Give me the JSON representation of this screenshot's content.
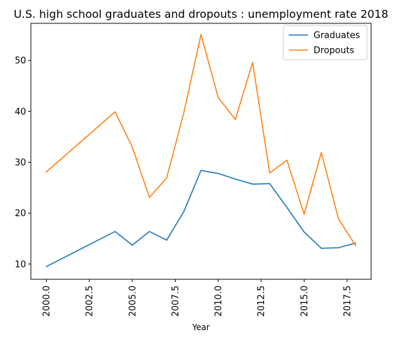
{
  "chart_data": {
    "type": "line",
    "title": "U.S. high school graduates and dropouts : unemployment rate 2018",
    "xlabel": "Year",
    "ylabel": "",
    "xlim": [
      1999.1,
      2018.9
    ],
    "ylim": [
      7,
      57.3
    ],
    "xticks": [
      2000.0,
      2002.5,
      2005.0,
      2007.5,
      2010.0,
      2012.5,
      2015.0,
      2017.5
    ],
    "xtick_labels": [
      "2000.0",
      "2002.5",
      "2005.0",
      "2007.5",
      "2010.0",
      "2012.5",
      "2015.0",
      "2017.5"
    ],
    "yticks": [
      10,
      20,
      30,
      40,
      50
    ],
    "ytick_labels": [
      "10",
      "20",
      "30",
      "40",
      "50"
    ],
    "grid": false,
    "legend_position": "top-right",
    "series": [
      {
        "name": "Graduates",
        "color": "#1f77b4",
        "x": [
          2000,
          2004,
          2005,
          2006,
          2007,
          2008,
          2009,
          2010,
          2011,
          2012,
          2013,
          2014,
          2015,
          2016,
          2017,
          2018
        ],
        "y": [
          9.5,
          16.4,
          13.7,
          16.4,
          14.7,
          20.3,
          28.4,
          27.8,
          26.7,
          25.7,
          25.8,
          21.1,
          16.3,
          13.1,
          13.2,
          14.1
        ]
      },
      {
        "name": "Dropouts",
        "color": "#ff7f0e",
        "x": [
          2000,
          2004,
          2005,
          2006,
          2007,
          2008,
          2009,
          2010,
          2011,
          2012,
          2013,
          2014,
          2015,
          2016,
          2017,
          2018
        ],
        "y": [
          28.1,
          39.9,
          33.0,
          23.1,
          26.9,
          39.7,
          55.1,
          42.7,
          38.4,
          49.6,
          27.9,
          30.4,
          19.8,
          31.9,
          18.9,
          13.6
        ]
      }
    ]
  }
}
